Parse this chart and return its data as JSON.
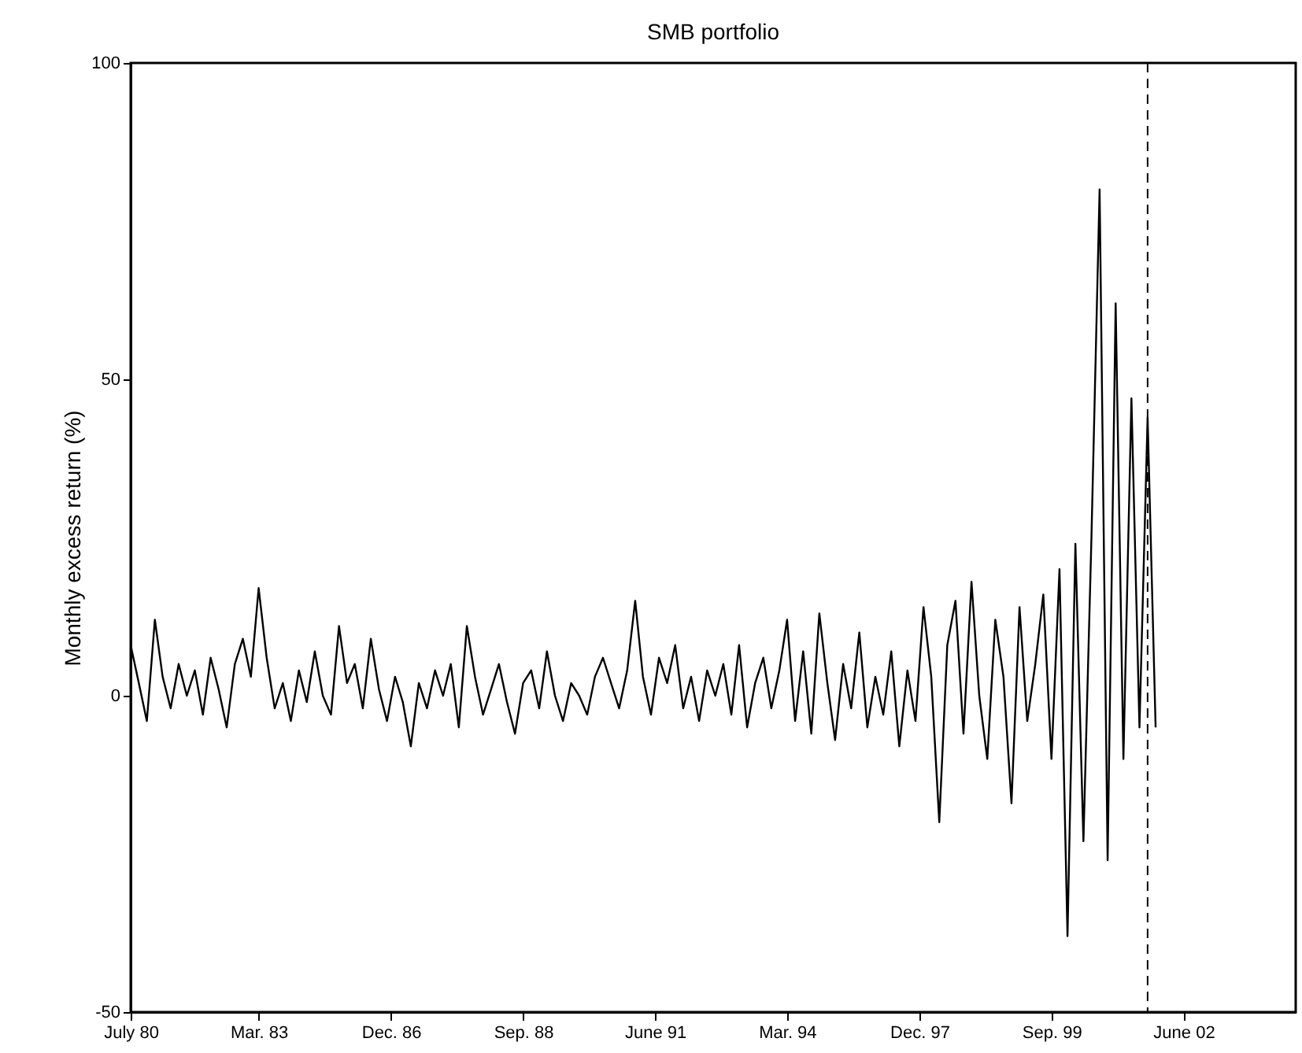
{
  "chart_data": {
    "type": "line",
    "title": "SMB portfolio",
    "ylabel": "Monthly excess return (%)",
    "x": [
      "1980-07",
      "1980-09",
      "1980-11",
      "1981-01",
      "1981-03",
      "1981-05",
      "1981-07",
      "1981-09",
      "1981-11",
      "1982-01",
      "1982-03",
      "1982-05",
      "1982-07",
      "1982-09",
      "1982-11",
      "1983-01",
      "1983-03",
      "1983-05",
      "1983-07",
      "1983-09",
      "1983-11",
      "1984-01",
      "1984-03",
      "1984-05",
      "1984-07",
      "1984-09",
      "1984-11",
      "1985-01",
      "1985-03",
      "1985-05",
      "1985-07",
      "1985-09",
      "1985-11",
      "1986-01",
      "1986-03",
      "1986-05",
      "1986-07",
      "1986-09",
      "1986-11",
      "1987-01",
      "1987-03",
      "1987-05",
      "1987-07",
      "1987-09",
      "1987-11",
      "1988-01",
      "1988-03",
      "1988-05",
      "1988-07",
      "1988-09",
      "1988-11",
      "1989-01",
      "1989-03",
      "1989-05",
      "1989-07",
      "1989-09",
      "1989-11",
      "1990-01",
      "1990-03",
      "1990-05",
      "1990-07",
      "1990-09",
      "1990-11",
      "1991-01",
      "1991-03",
      "1991-05",
      "1991-07",
      "1991-09",
      "1991-11",
      "1992-01",
      "1992-03",
      "1992-05",
      "1992-07",
      "1992-09",
      "1992-11",
      "1993-01",
      "1993-03",
      "1993-05",
      "1993-07",
      "1993-09",
      "1993-11",
      "1994-01",
      "1994-03",
      "1994-05",
      "1994-07",
      "1994-09",
      "1994-11",
      "1995-01",
      "1995-03",
      "1995-05",
      "1995-07",
      "1995-09",
      "1995-11",
      "1996-01",
      "1996-03",
      "1996-05",
      "1996-07",
      "1996-09",
      "1996-11",
      "1997-01",
      "1997-03",
      "1997-05",
      "1997-07",
      "1997-09",
      "1997-11",
      "1998-01",
      "1998-03",
      "1998-05",
      "1998-07",
      "1998-09",
      "1998-11",
      "1999-01",
      "1999-03",
      "1999-05",
      "1999-07",
      "1999-09",
      "1999-11",
      "2000-01",
      "2000-03",
      "2000-05",
      "2000-07",
      "2000-09",
      "2000-11",
      "2001-01",
      "2001-03",
      "2001-05",
      "2001-07",
      "2001-09",
      "2001-11"
    ],
    "series": [
      {
        "color": "#000000",
        "values": [
          8,
          2,
          -4,
          12,
          3,
          -2,
          5,
          0,
          4,
          -3,
          6,
          1,
          -5,
          5,
          9,
          3,
          17,
          6,
          -2,
          2,
          -4,
          4,
          -1,
          7,
          0,
          -3,
          11,
          2,
          5,
          -2,
          9,
          1,
          -4,
          3,
          -1,
          -8,
          2,
          -2,
          4,
          0,
          5,
          -5,
          11,
          3,
          -3,
          1,
          5,
          -1,
          -6,
          2,
          4,
          -2,
          7,
          0,
          -4,
          2,
          0,
          -3,
          3,
          6,
          2,
          -2,
          4,
          15,
          3,
          -3,
          6,
          2,
          8,
          -2,
          3,
          -4,
          4,
          0,
          5,
          -3,
          8,
          -5,
          2,
          6,
          -2,
          4,
          12,
          -4,
          7,
          -6,
          13,
          2,
          -7,
          5,
          -2,
          10,
          -5,
          3,
          -3,
          7,
          -8,
          4,
          -4,
          14,
          3,
          -20,
          8,
          15,
          -6,
          18,
          0,
          -10,
          12,
          3,
          -17,
          14,
          -4,
          5,
          16,
          -10,
          20,
          -38,
          24,
          -23,
          25,
          80,
          -26,
          62,
          -10,
          47,
          -5,
          44,
          -5
        ]
      }
    ],
    "xlim": [
      "1980-07",
      "2004-10"
    ],
    "xticks": [
      {
        "value": "1980-07",
        "label": "July 80"
      },
      {
        "value": "1983-03",
        "label": "Mar. 83"
      },
      {
        "value": "1985-12",
        "label": "Dec. 86"
      },
      {
        "value": "1988-09",
        "label": "Sep. 88"
      },
      {
        "value": "1991-06",
        "label": "June 91"
      },
      {
        "value": "1994-03",
        "label": "Mar. 94"
      },
      {
        "value": "1996-12",
        "label": "Dec. 97"
      },
      {
        "value": "1999-09",
        "label": "Sep. 99"
      },
      {
        "value": "2002-06",
        "label": "June 02"
      }
    ],
    "ylim": [
      -50,
      100
    ],
    "yticks": [
      -50,
      0,
      50,
      100
    ],
    "ref_lines": [
      {
        "axis": "x",
        "value": "2001-09",
        "color": "#000000",
        "line_style": "dashed"
      }
    ]
  }
}
